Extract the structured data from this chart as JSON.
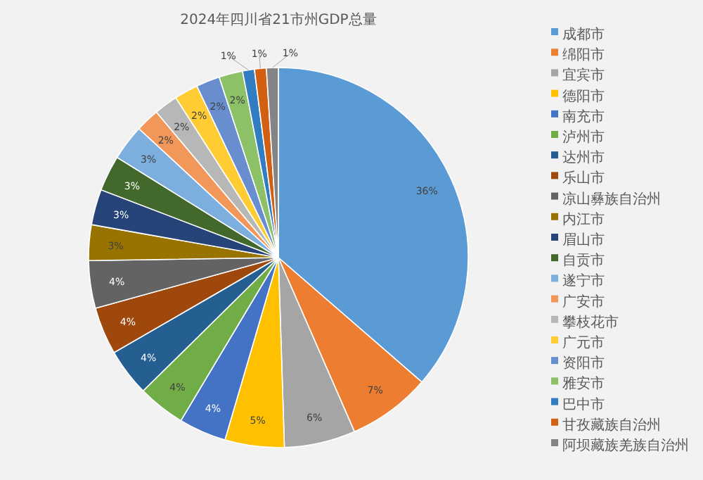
{
  "chart_data": {
    "type": "pie",
    "title": "2024年四川省21市州GDP总量",
    "categories": [
      "成都市",
      "绵阳市",
      "宜宾市",
      "德阳市",
      "南充市",
      "泸州市",
      "达州市",
      "乐山市",
      "凉山彝族自治州",
      "内江市",
      "眉山市",
      "自贡市",
      "遂宁市",
      "广安市",
      "攀枝花市",
      "广元市",
      "资阳市",
      "雅安市",
      "巴中市",
      "甘孜藏族自治州",
      "阿坝藏族羌族自治州"
    ],
    "values": [
      36,
      7,
      6,
      5,
      4,
      4,
      4,
      4,
      4,
      3,
      3,
      3,
      3,
      2,
      2,
      2,
      2,
      2,
      1,
      1,
      1
    ],
    "colors": [
      "#5b9bd5",
      "#ed7d31",
      "#a5a5a5",
      "#ffc000",
      "#4472c4",
      "#70ad47",
      "#255e91",
      "#9e480e",
      "#636363",
      "#997300",
      "#264478",
      "#43682b",
      "#7cafdd",
      "#f1975a",
      "#b7b7b7",
      "#ffcd33",
      "#698ed0",
      "#8cc168",
      "#327dc2",
      "#d26012",
      "#848484"
    ],
    "value_labels": [
      "36%",
      "7%",
      "6%",
      "5%",
      "4%",
      "4%",
      "4%",
      "4%",
      "4%",
      "3%",
      "3%",
      "3%",
      "3%",
      "2%",
      "2%",
      "2%",
      "2%",
      "2%",
      "1%",
      "1%",
      "1%"
    ],
    "legend": "right"
  }
}
